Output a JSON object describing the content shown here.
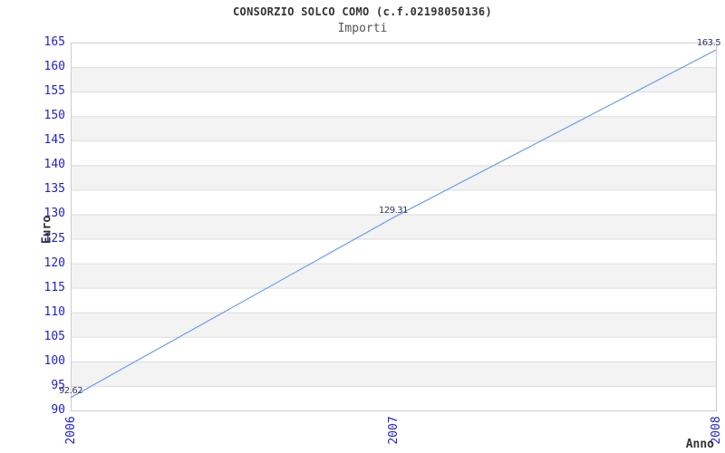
{
  "chart_data": {
    "type": "line",
    "title": "CONSORZIO SOLCO COMO (c.f.02198050136)",
    "subtitle": "Importi",
    "xlabel": "Anno",
    "ylabel": "Euro",
    "categories": [
      "2006",
      "2007",
      "2008"
    ],
    "series": [
      {
        "name": "Importi",
        "values": [
          92.62,
          129.31,
          163.5
        ]
      }
    ],
    "point_labels": [
      "92.62",
      "129.31",
      "163.5"
    ],
    "ylim": [
      90,
      165
    ],
    "ytick_step": 5,
    "grid": "horizontal-alternating-bands",
    "legend": "none",
    "colors": {
      "line": "#6d9eeb",
      "tick_label": "#2222cc",
      "point_label": "#333366",
      "band": "#f3f3f3",
      "gridline": "#dddddd",
      "border": "#cccccc",
      "title": "#333333",
      "subtitle": "#555555",
      "axis_label": "#333333"
    }
  }
}
